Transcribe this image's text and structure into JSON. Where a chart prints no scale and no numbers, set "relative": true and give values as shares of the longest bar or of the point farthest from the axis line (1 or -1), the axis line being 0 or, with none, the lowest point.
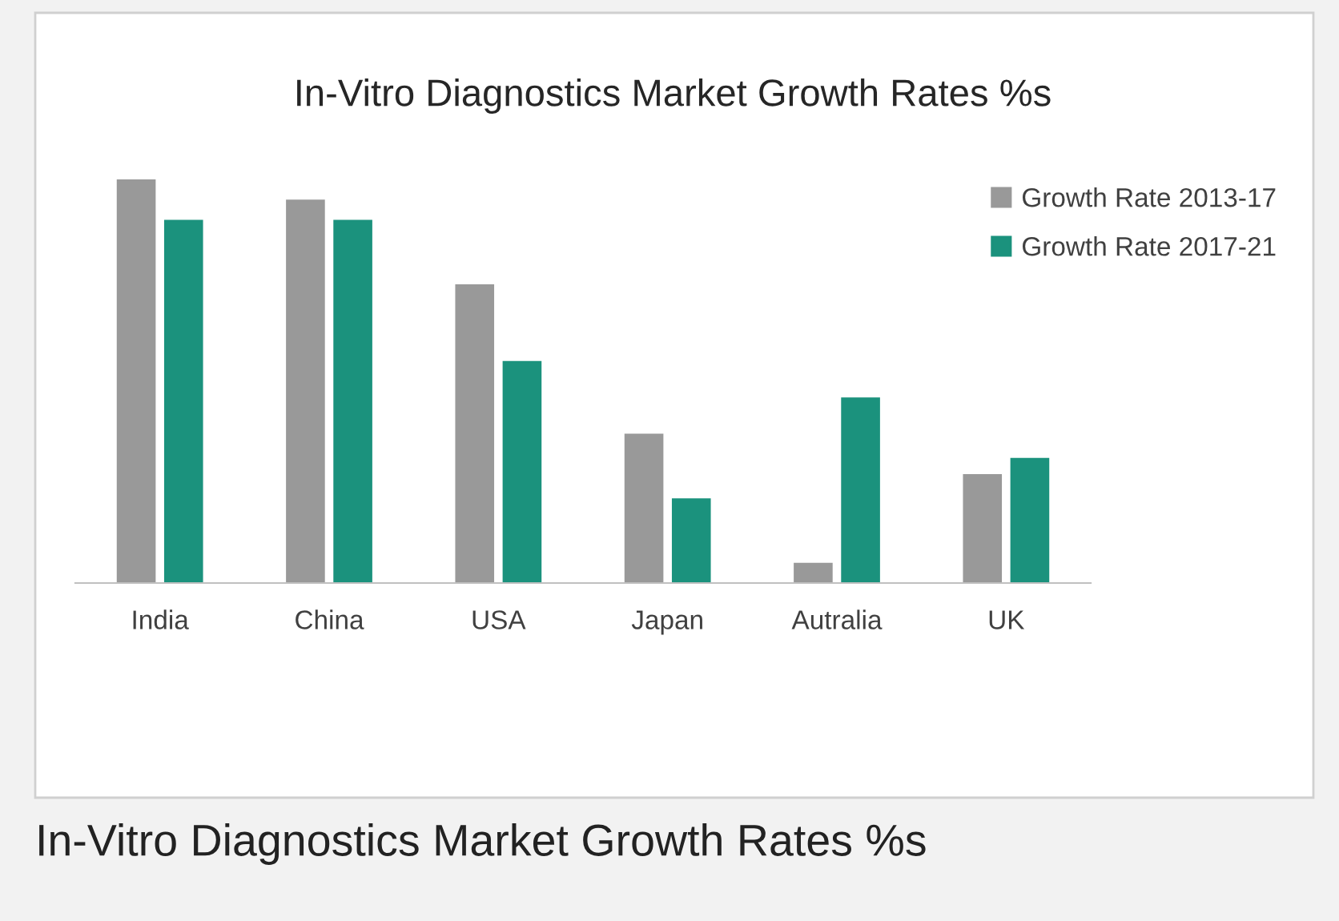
{
  "chart_data": {
    "type": "bar",
    "title": "In-Vitro Diagnostics Market Growth Rates %s",
    "categories": [
      "India",
      "China",
      "USA",
      "Japan",
      "Autralia",
      "UK"
    ],
    "series": [
      {
        "name": "Growth Rate 2013-17",
        "color": "#999999",
        "values": [
          1.0,
          0.95,
          0.74,
          0.37,
          0.05,
          0.27
        ]
      },
      {
        "name": "Growth Rate 2017-21",
        "color": "#1b927d",
        "values": [
          0.9,
          0.9,
          0.55,
          0.21,
          0.46,
          0.31
        ]
      }
    ],
    "relative": true,
    "legend": "top right",
    "annotations": [
      "In-Vitro Diagnostics Market Growth Rates %s"
    ]
  }
}
